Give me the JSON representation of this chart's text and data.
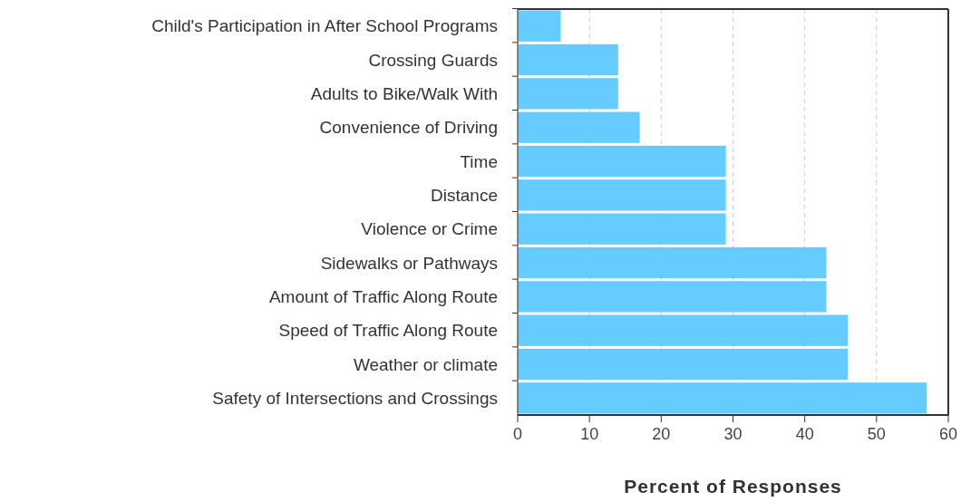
{
  "chart_data": {
    "type": "bar",
    "orientation": "horizontal",
    "xlabel": "Percent of Responses",
    "categories": [
      "Child's Participation in After School Programs",
      "Crossing Guards",
      "Adults to Bike/Walk With",
      "Convenience of Driving",
      "Time",
      "Distance",
      "Violence or Crime",
      "Sidewalks or Pathways",
      "Amount of Traffic Along Route",
      "Speed of Traffic Along Route",
      "Weather or climate",
      "Safety of Intersections and Crossings"
    ],
    "values": [
      6,
      14,
      14,
      17,
      29,
      29,
      29,
      43,
      43,
      46,
      46,
      57
    ],
    "color": "#66ccff",
    "xlim": [
      0,
      60
    ],
    "xticks": [
      0,
      10,
      20,
      30,
      40,
      50,
      60
    ],
    "grid": "x"
  }
}
